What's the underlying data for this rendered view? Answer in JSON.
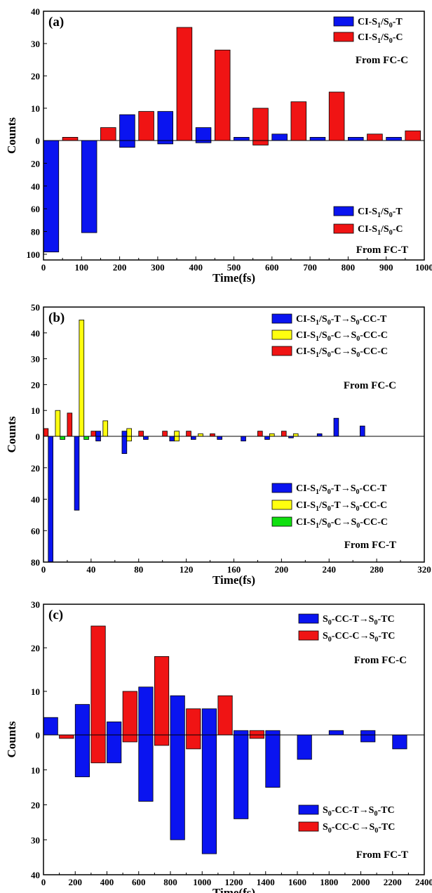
{
  "chart_data": [
    {
      "panel_label": "(a)",
      "type": "bar",
      "xlabel": "Time(fs)",
      "ylabel": "Counts",
      "x_ticks": [
        0,
        100,
        200,
        300,
        400,
        500,
        600,
        700,
        800,
        900,
        1000
      ],
      "y_ticks_up": [
        "10",
        "20",
        "30",
        "40"
      ],
      "y_ticks_down": [
        "20",
        "40",
        "60",
        "80",
        "100"
      ],
      "zero_tick": "0",
      "xlim": [
        0,
        1000
      ],
      "ylim_up": 40,
      "ylim_down": 105,
      "upper_group": {
        "origin": "From FC-C",
        "legend": [
          {
            "pre": "CI-S",
            "s1": "1",
            "mid": "/S",
            "s2": "0",
            "post": "-T",
            "color": "#0a14f0"
          },
          {
            "pre": "CI-S",
            "s1": "1",
            "mid": "/S",
            "s2": "0",
            "post": "-C",
            "color": "#f01414"
          }
        ]
      },
      "lower_group": {
        "origin": "From FC-T",
        "legend": [
          {
            "pre": "CI-S",
            "s1": "1",
            "mid": "/S",
            "s2": "0",
            "post": "-T",
            "color": "#0a14f0"
          },
          {
            "pre": "CI-S",
            "s1": "1",
            "mid": "/S",
            "s2": "0",
            "post": "-C",
            "color": "#f01414"
          }
        ]
      },
      "series": [
        {
          "name": "CI-S1/S0-T (From FC-C)",
          "color": "#0a14f0",
          "x0": [
            0,
            100,
            200,
            300,
            400,
            500,
            600,
            700,
            800,
            900
          ],
          "width": 40,
          "values": [
            0,
            0,
            8,
            9,
            4,
            1,
            2,
            1,
            1,
            1
          ]
        },
        {
          "name": "CI-S1/S0-C (From FC-C)",
          "color": "#f01414",
          "x0": [
            50,
            150,
            250,
            350,
            450,
            550,
            650,
            750,
            850,
            950
          ],
          "width": 40,
          "values": [
            1,
            4,
            9,
            35,
            28,
            10,
            12,
            15,
            2,
            3
          ]
        },
        {
          "name": "CI-S1/S0-T (From FC-T)",
          "color": "#0a14f0",
          "x0": [
            0,
            100,
            200,
            300,
            400,
            500,
            600,
            700,
            800,
            900
          ],
          "width": 40,
          "values": [
            -98,
            -81,
            -6,
            -3,
            -2,
            0,
            0,
            0,
            0,
            0
          ]
        },
        {
          "name": "CI-S1/S0-C (From FC-T)",
          "color": "#f01414",
          "x0": [
            50,
            150,
            250,
            350,
            450,
            550,
            650,
            750,
            850,
            950
          ],
          "width": 40,
          "values": [
            0,
            0,
            0,
            0,
            0,
            -4,
            0,
            0,
            0,
            0
          ]
        }
      ]
    },
    {
      "panel_label": "(b)",
      "type": "bar",
      "xlabel": "Time(fs)",
      "ylabel": "Counts",
      "x_ticks": [
        0,
        40,
        80,
        120,
        160,
        200,
        240,
        280,
        320
      ],
      "y_ticks_up": [
        "10",
        "20",
        "30",
        "40",
        "50"
      ],
      "y_ticks_down": [
        "20",
        "40",
        "60",
        "80"
      ],
      "zero_tick": "0",
      "xlim": [
        0,
        320
      ],
      "ylim_up": 50,
      "ylim_down": 80,
      "upper_group": {
        "origin": "From FC-C",
        "legend": [
          {
            "pre": "CI-S",
            "s1": "1",
            "mid": "/S",
            "s2": "0",
            "post": "-T→S",
            "s3": "0",
            "post2": "-CC-T",
            "color": "#0a14f0"
          },
          {
            "pre": "CI-S",
            "s1": "1",
            "mid": "/S",
            "s2": "0",
            "post": "-C→S",
            "s3": "0",
            "post2": "-CC-C",
            "color": "#ffff10"
          },
          {
            "pre": "CI-S",
            "s1": "1",
            "mid": "/S",
            "s2": "0",
            "post": "-C→S",
            "s3": "0",
            "post2": "-CC-C",
            "color": "#f01414"
          }
        ]
      },
      "lower_group": {
        "origin": "From FC-T",
        "legend": [
          {
            "pre": "CI-S",
            "s1": "1",
            "mid": "/S",
            "s2": "0",
            "post": "-T→S",
            "s3": "0",
            "post2": "-CC-T",
            "color": "#0a14f0"
          },
          {
            "pre": "CI-S",
            "s1": "1",
            "mid": "/S",
            "s2": "0",
            "post": "-T→S",
            "s3": "0",
            "post2": "-CC-C",
            "color": "#ffff10"
          },
          {
            "pre": "CI-S",
            "s1": "1",
            "mid": "/S",
            "s2": "0",
            "post": "-C→S",
            "s3": "0",
            "post2": "-CC-C",
            "color": "#10e010"
          }
        ]
      },
      "series": [
        {
          "name": "red up",
          "color": "#f01414",
          "x0": [
            0,
            20,
            40,
            80,
            100,
            120,
            140,
            180,
            200
          ],
          "width": 4,
          "values": [
            3,
            9,
            2,
            2,
            2,
            2,
            1,
            2,
            2
          ]
        },
        {
          "name": "yellow up",
          "color": "#ffff10",
          "x0": [
            10,
            30,
            50,
            70,
            110,
            130,
            190,
            210
          ],
          "width": 4,
          "values": [
            10,
            45,
            6,
            3,
            2,
            1,
            1,
            1
          ]
        },
        {
          "name": "blue up",
          "color": "#0a14f0",
          "x0": [
            44,
            66,
            230,
            244,
            266
          ],
          "width": 4,
          "values": [
            2,
            2,
            1,
            7,
            4
          ]
        },
        {
          "name": "blue down",
          "color": "#0a14f0",
          "x0": [
            4,
            26,
            44,
            66,
            84,
            106,
            124,
            146,
            166,
            186,
            206
          ],
          "width": 4,
          "values": [
            -80,
            -47,
            -3,
            -11,
            -2,
            -3,
            -2,
            -2,
            -3,
            -2,
            -1
          ]
        },
        {
          "name": "yellow down",
          "color": "#ffff10",
          "x0": [
            70,
            110
          ],
          "width": 4,
          "values": [
            -3,
            -3
          ]
        },
        {
          "name": "green down",
          "color": "#10e010",
          "x0": [
            14,
            34
          ],
          "width": 4,
          "values": [
            -2,
            -2
          ]
        }
      ]
    },
    {
      "panel_label": "(c)",
      "type": "bar",
      "xlabel": "Time(fs)",
      "ylabel": "Counts",
      "x_ticks": [
        0,
        200,
        400,
        600,
        800,
        1000,
        1200,
        1400,
        1600,
        1800,
        2000,
        2200,
        2400
      ],
      "y_ticks_up": [
        "10",
        "20",
        "30"
      ],
      "y_ticks_down": [
        "10",
        "20",
        "30",
        "40"
      ],
      "zero_tick": "0",
      "xlim": [
        0,
        2400
      ],
      "ylim_up": 30,
      "ylim_down": 40,
      "upper_group": {
        "origin": "From FC-C",
        "legend": [
          {
            "pre": "S",
            "s1": "0",
            "mid": "-CC-T→S",
            "s2": "0",
            "post": "-TC",
            "color": "#0a14f0"
          },
          {
            "pre": "S",
            "s1": "0",
            "mid": "-CC-C→S",
            "s2": "0",
            "post": "-TC",
            "color": "#f01414"
          }
        ]
      },
      "lower_group": {
        "origin": "From FC-T",
        "legend": [
          {
            "pre": "S",
            "s1": "0",
            "mid": "-CC-T→S",
            "s2": "0",
            "post": "-TC",
            "color": "#0a14f0"
          },
          {
            "pre": "S",
            "s1": "0",
            "mid": "-CC-C→S",
            "s2": "0",
            "post": "-TC",
            "color": "#f01414"
          }
        ]
      },
      "series": [
        {
          "name": "S0-CC-T→S0-TC (From FC-C)",
          "color": "#0a14f0",
          "x0": [
            0,
            200,
            400,
            600,
            800,
            1000,
            1200,
            1400,
            1600,
            1800,
            2000,
            2200
          ],
          "width": 90,
          "values": [
            4,
            7,
            3,
            11,
            9,
            6,
            1,
            1,
            0,
            1,
            1,
            0
          ]
        },
        {
          "name": "S0-CC-C→S0-TC (From FC-C)",
          "color": "#f01414",
          "x0": [
            100,
            300,
            500,
            700,
            900,
            1100,
            1300,
            1500,
            1700,
            1900,
            2100,
            2300
          ],
          "width": 90,
          "values": [
            0,
            25,
            10,
            18,
            6,
            9,
            1,
            0,
            0,
            0,
            0,
            0
          ]
        },
        {
          "name": "S0-CC-T→S0-TC (From FC-T)",
          "color": "#0a14f0",
          "x0": [
            0,
            200,
            400,
            600,
            800,
            1000,
            1200,
            1400,
            1600,
            1800,
            2000,
            2200
          ],
          "width": 90,
          "values": [
            0,
            -12,
            -8,
            -19,
            -30,
            -34,
            -24,
            -15,
            -7,
            0,
            -2,
            -4
          ]
        },
        {
          "name": "S0-CC-C→S0-TC (From FC-T)",
          "color": "#f01414",
          "x0": [
            100,
            300,
            500,
            700,
            900,
            1100,
            1300,
            1500,
            1700,
            1900,
            2100,
            2300
          ],
          "width": 90,
          "values": [
            -1,
            -8,
            -2,
            -3,
            -4,
            0,
            -1,
            0,
            0,
            0,
            0,
            0
          ]
        }
      ]
    }
  ]
}
